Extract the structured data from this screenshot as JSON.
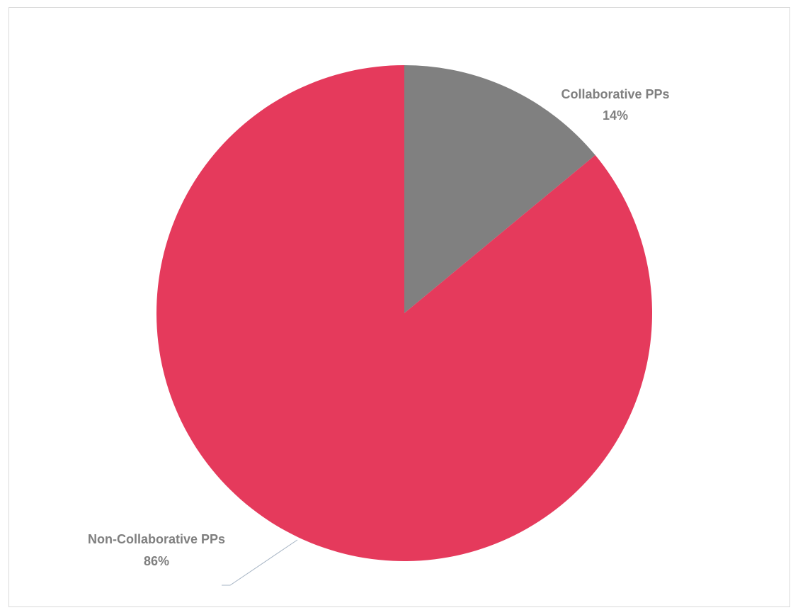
{
  "chart_data": {
    "type": "pie",
    "title": "",
    "slices": [
      {
        "label": "Collaborative PPs",
        "value": 14,
        "percent_label": "14%",
        "color": "#808080"
      },
      {
        "label": "Non-Collaborative PPs",
        "value": 86,
        "percent_label": "86%",
        "color": "#e53a5c"
      }
    ],
    "start_angle_deg": 0,
    "direction": "clockwise",
    "legend": "none",
    "data_labels": "category-and-percent",
    "label_color": "#7f7f7f",
    "leader_line_color": "#a6b4c4",
    "border_color": "#d9d9d9"
  }
}
